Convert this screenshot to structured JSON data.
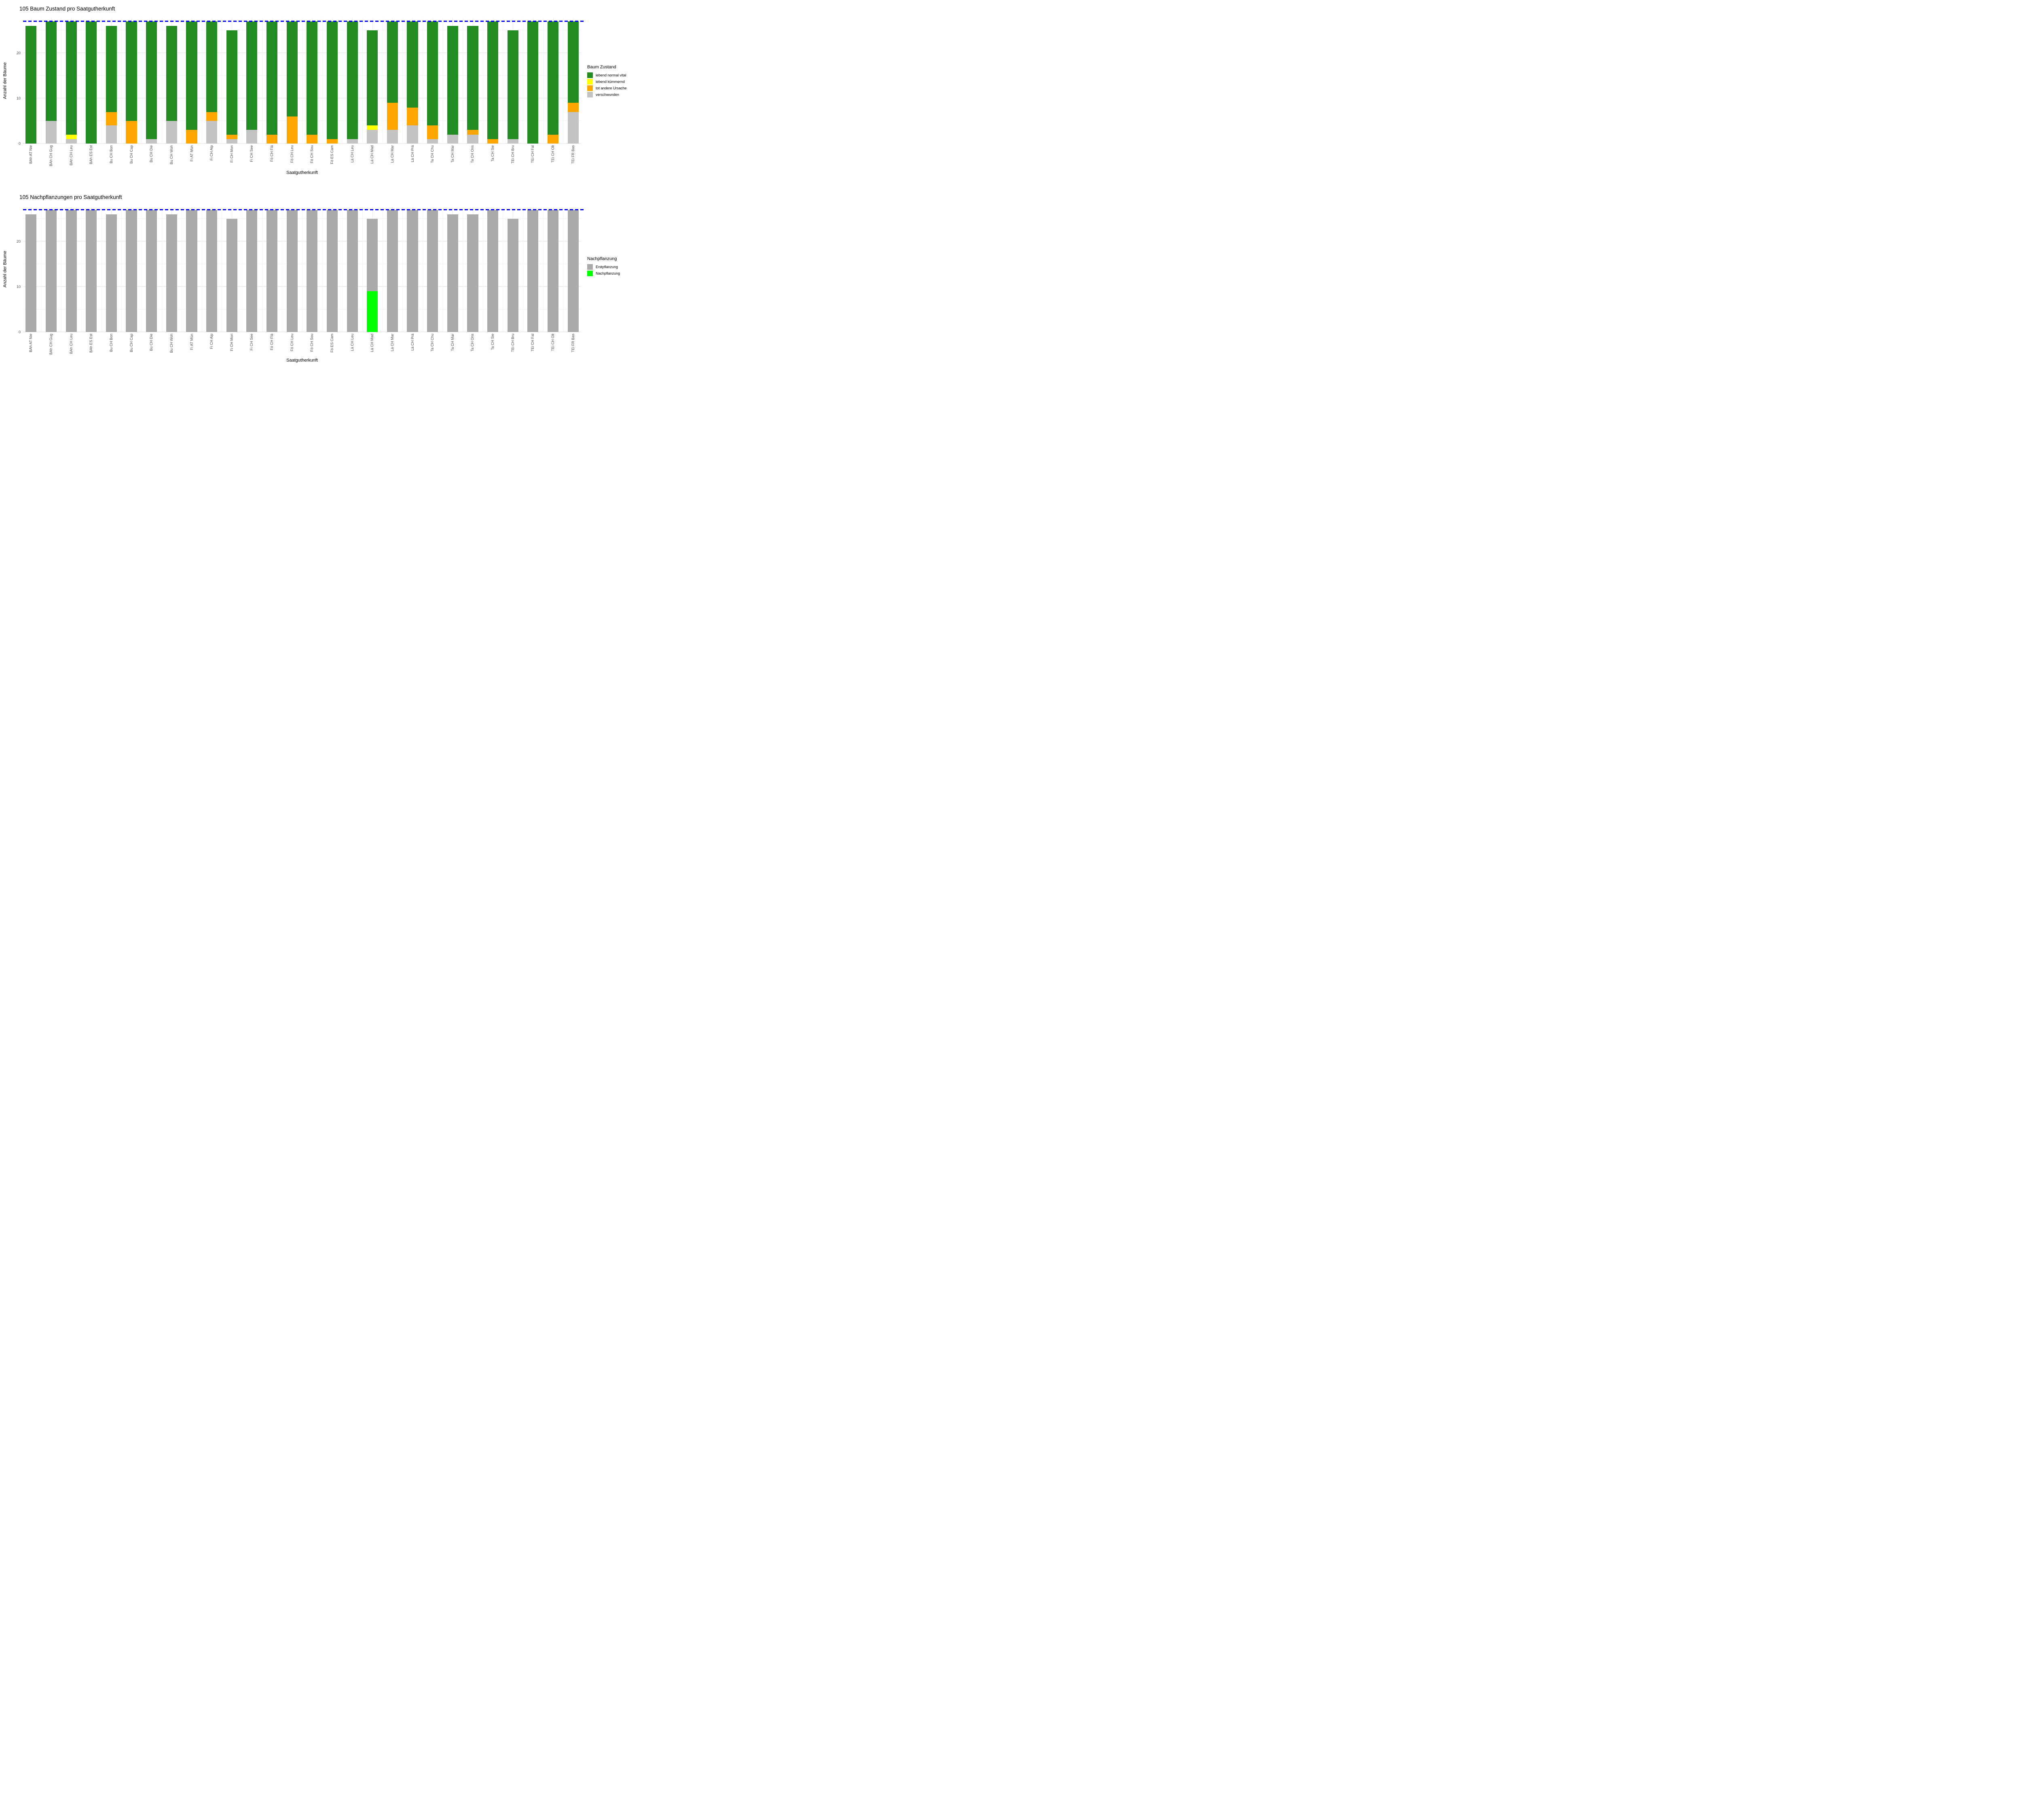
{
  "chart_data": [
    {
      "type": "bar",
      "stacked": true,
      "title": "105 Baum Zustand pro Saatgutherkunft",
      "xlabel": "Saatgutherkunft",
      "ylabel": "Anzahl der Bäume",
      "ylim": [
        0,
        27.7
      ],
      "yticks": [
        0,
        10,
        20
      ],
      "minor_gridlines": [
        5,
        15,
        25
      ],
      "grid": "on",
      "reference_line": {
        "y": 27,
        "color": "#0000ff",
        "style": "dashed"
      },
      "legend": {
        "title": "Baum Zustand",
        "position": "right",
        "items": [
          {
            "label": "lebend normal vital",
            "color": "#228b22"
          },
          {
            "label": "lebend kümmernd",
            "color": "#ffff00"
          },
          {
            "label": "tot andere Ursache",
            "color": "#ffa500"
          },
          {
            "label": "verschwunden",
            "color": "#c3c3c3"
          }
        ]
      },
      "categories": [
        "BAh AT Nie",
        "BAh CH Gug",
        "BAh CH Leu",
        "BAh ES Est",
        "Bu CH Bon",
        "Bu CH Cap",
        "Bu CH Die",
        "Bu CH Woh",
        "Fi AT Mün",
        "Fi CH Alp",
        "Fi CH Mon",
        "Fi CH See",
        "Fö CH Flä",
        "Fö CH Leu",
        "Fö CH Sou",
        "Fö ES Cam",
        "Lä CH Leu",
        "Lä CH Mad",
        "Lä CH Mar",
        "Lä CH Prä",
        "Ta CH Chu",
        "Ta CH Mar",
        "Ta CH Ons",
        "Ta CH Sie",
        "TEi CH Bru",
        "TEi CH Fal",
        "TEi CH Olt",
        "TEi FR Bas"
      ],
      "series": [
        {
          "name": "verschwunden",
          "color": "#c3c3c3",
          "values": [
            0,
            5,
            1,
            0,
            4,
            0,
            1,
            5,
            0,
            5,
            1,
            3,
            0,
            0,
            0,
            0,
            1,
            3,
            3,
            4,
            1,
            2,
            2,
            0,
            1,
            0,
            0,
            7
          ]
        },
        {
          "name": "tot andere Ursache",
          "color": "#ffa500",
          "values": [
            0,
            0,
            0,
            0,
            3,
            5,
            0,
            0,
            3,
            2,
            1,
            0,
            2,
            6,
            2,
            1,
            0,
            0,
            6,
            4,
            3,
            0,
            1,
            1,
            0,
            0,
            2,
            2
          ]
        },
        {
          "name": "lebend kümmernd",
          "color": "#ffff00",
          "values": [
            0,
            0,
            1,
            0,
            0,
            0,
            0,
            0,
            0,
            0,
            0,
            0,
            0,
            0,
            0,
            0,
            0,
            1,
            0,
            0,
            0,
            0,
            0,
            0,
            0,
            0,
            0,
            0
          ]
        },
        {
          "name": "lebend normal vital",
          "color": "#228b22",
          "values": [
            26,
            22,
            25,
            27,
            19,
            22,
            26,
            21,
            24,
            20,
            23,
            24,
            25,
            21,
            25,
            26,
            26,
            21,
            18,
            19,
            23,
            24,
            23,
            26,
            24,
            27,
            25,
            18
          ]
        }
      ]
    },
    {
      "type": "bar",
      "stacked": true,
      "title": "105 Nachpflanzungen pro Saatgutherkunft",
      "xlabel": "Saatgutherkunft",
      "ylabel": "Anzahl der Bäume",
      "ylim": [
        0,
        27.7
      ],
      "yticks": [
        0,
        10,
        20
      ],
      "minor_gridlines": [
        5,
        15,
        25
      ],
      "grid": "on",
      "reference_line": {
        "y": 27,
        "color": "#0000ff",
        "style": "dashed"
      },
      "legend": {
        "title": "Nachpflanzung",
        "position": "right",
        "items": [
          {
            "label": "Erstpflanzung",
            "color": "#aaaaaa"
          },
          {
            "label": "Nachpflanzung",
            "color": "#00ff00"
          }
        ]
      },
      "categories": [
        "BAh AT Nie",
        "BAh CH Gug",
        "BAh CH Leu",
        "BAh ES Est",
        "Bu CH Bon",
        "Bu CH Cap",
        "Bu CH Die",
        "Bu CH Woh",
        "Fi AT Mün",
        "Fi CH Alp",
        "Fi CH Mon",
        "Fi CH See",
        "Fö CH Flä",
        "Fö CH Leu",
        "Fö CH Sou",
        "Fö ES Cam",
        "Lä CH Leu",
        "Lä CH Mad",
        "Lä CH Mar",
        "Lä CH Prä",
        "Ta CH Chu",
        "Ta CH Mar",
        "Ta CH Ons",
        "Ta CH Sie",
        "TEi CH Bru",
        "TEi CH Fal",
        "TEi CH Olt",
        "TEi FR Bas"
      ],
      "series": [
        {
          "name": "Nachpflanzung",
          "color": "#00ff00",
          "values": [
            0,
            0,
            0,
            0,
            0,
            0,
            0,
            0,
            0,
            0,
            0,
            0,
            0,
            0,
            0,
            0,
            0,
            9,
            0,
            0,
            0,
            0,
            0,
            0,
            0,
            0,
            0,
            0
          ]
        },
        {
          "name": "Erstpflanzung",
          "color": "#aaaaaa",
          "values": [
            26,
            27,
            27,
            27,
            26,
            27,
            27,
            26,
            27,
            27,
            25,
            27,
            27,
            27,
            27,
            27,
            27,
            16,
            27,
            27,
            27,
            26,
            26,
            27,
            25,
            27,
            27,
            27
          ]
        }
      ]
    }
  ]
}
